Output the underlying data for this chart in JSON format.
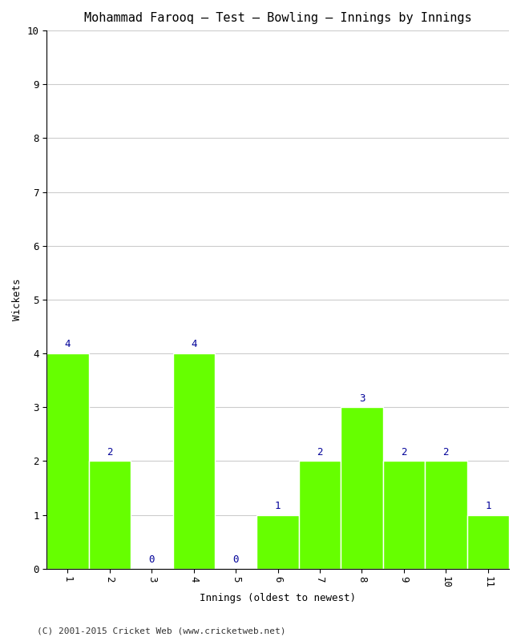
{
  "title": "Mohammad Farooq – Test – Bowling – Innings by Innings",
  "xlabel": "Innings (oldest to newest)",
  "ylabel": "Wickets",
  "categories": [
    "1",
    "2",
    "3",
    "4",
    "5",
    "6",
    "7",
    "8",
    "9",
    "10",
    "11"
  ],
  "values": [
    4,
    2,
    0,
    4,
    0,
    1,
    2,
    3,
    2,
    2,
    1
  ],
  "bar_color": "#66ff00",
  "bar_edge_color": "#ffffff",
  "value_label_color": "#000099",
  "ylim": [
    0,
    10
  ],
  "yticks": [
    0,
    1,
    2,
    3,
    4,
    5,
    6,
    7,
    8,
    9,
    10
  ],
  "background_color": "#ffffff",
  "grid_color": "#cccccc",
  "title_fontsize": 11,
  "axis_label_fontsize": 9,
  "tick_label_fontsize": 9,
  "value_label_fontsize": 9,
  "footer": "(C) 2001-2015 Cricket Web (www.cricketweb.net)"
}
